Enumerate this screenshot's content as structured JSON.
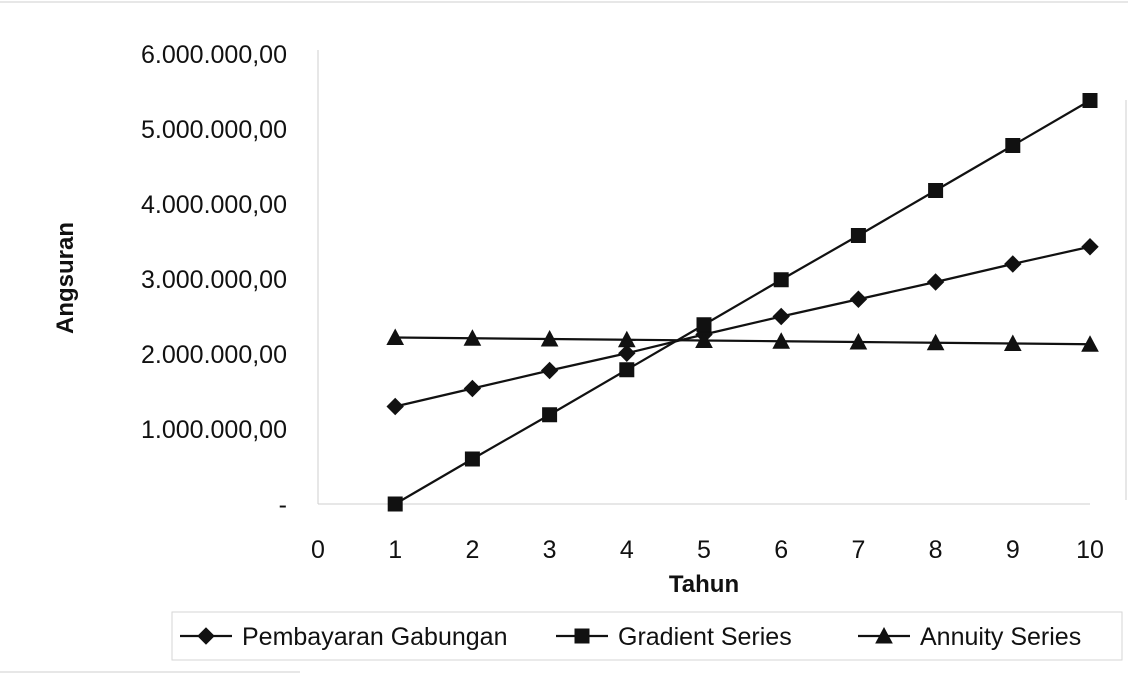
{
  "chart_data": {
    "type": "line",
    "x": [
      1,
      2,
      3,
      4,
      5,
      6,
      7,
      8,
      9,
      10
    ],
    "x_ticks": [
      "0",
      "1",
      "2",
      "3",
      "4",
      "5",
      "6",
      "7",
      "8",
      "9",
      "10"
    ],
    "y_ticks": [
      "-",
      "1.000.000,00",
      "2.000.000,00",
      "3.000.000,00",
      "4.000.000,00",
      "5.000.000,00",
      "6.000.000,00"
    ],
    "xlim": [
      0,
      10
    ],
    "ylim": [
      0,
      6000000
    ],
    "xlabel": "Tahun",
    "ylabel": "Angsuran",
    "grid": false,
    "legend_position": "bottom",
    "series": [
      {
        "name": "Pembayaran Gabungan",
        "marker": "diamond",
        "values": [
          1300000,
          1540000,
          1780000,
          2010000,
          2260000,
          2500000,
          2730000,
          2960000,
          3200000,
          3430000
        ]
      },
      {
        "name": "Gradient Series",
        "marker": "square",
        "values": [
          0,
          600000,
          1190000,
          1790000,
          2390000,
          2990000,
          3580000,
          4180000,
          4780000,
          5380000
        ]
      },
      {
        "name": "Annuity Series",
        "marker": "triangle",
        "values": [
          2220000,
          2210000,
          2200000,
          2190000,
          2180000,
          2170000,
          2160000,
          2150000,
          2140000,
          2130000
        ]
      }
    ]
  }
}
